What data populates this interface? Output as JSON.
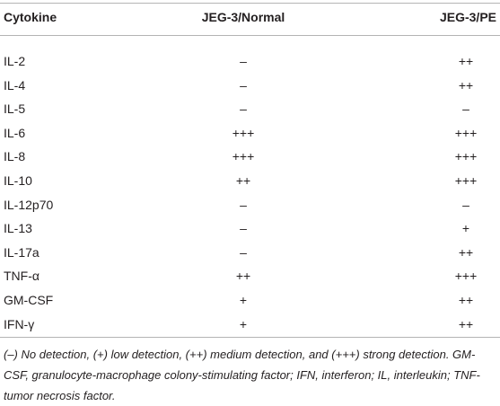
{
  "table": {
    "headers": [
      "Cytokine",
      "JEG-3/Normal",
      "JEG-3/PE"
    ],
    "rows": [
      [
        "IL-2",
        "–",
        "++"
      ],
      [
        "IL-4",
        "–",
        "++"
      ],
      [
        "IL-5",
        "–",
        "–"
      ],
      [
        "IL-6",
        "+++",
        "+++"
      ],
      [
        "IL-8",
        "+++",
        "+++"
      ],
      [
        "IL-10",
        "++",
        "+++"
      ],
      [
        "IL-12p70",
        "–",
        "–"
      ],
      [
        "IL-13",
        "–",
        "+"
      ],
      [
        "IL-17a",
        "–",
        "++"
      ],
      [
        "TNF-α",
        "++",
        "+++"
      ],
      [
        "GM-CSF",
        "+",
        "++"
      ],
      [
        "IFN-γ",
        "+",
        "++"
      ]
    ]
  },
  "footnote": "(–) No detection, (+) low detection, (++) medium detection, and (+++) strong detection. GM-CSF, granulocyte-macrophage colony-stimulating factor; IFN, interferon; IL, interleukin; TNF-tumor necrosis factor."
}
